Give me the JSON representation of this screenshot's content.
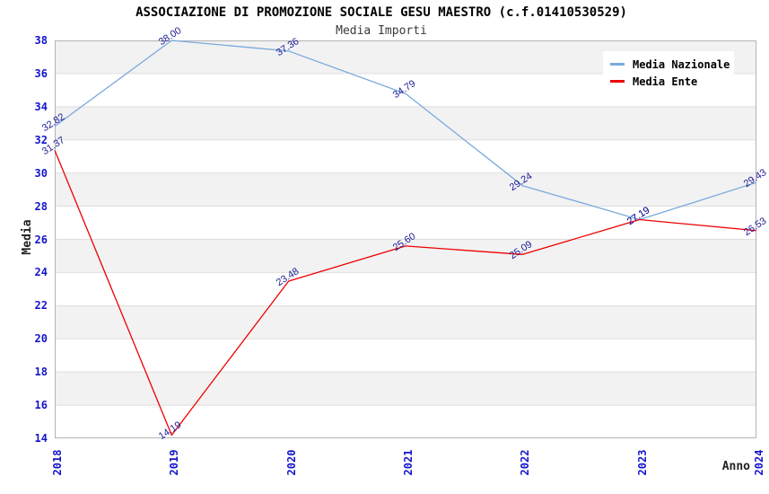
{
  "header": {
    "title": "ASSOCIAZIONE DI PROMOZIONE SOCIALE GESU MAESTRO (c.f.01410530529)",
    "subtitle": "Media Importi"
  },
  "chart_data": {
    "type": "line",
    "title": "ASSOCIAZIONE DI PROMOZIONE SOCIALE GESU MAESTRO (c.f.01410530529)",
    "subtitle": "Media Importi",
    "xlabel": "Anno",
    "ylabel": "Media",
    "categories": [
      "2018",
      "2019",
      "2020",
      "2021",
      "2022",
      "2023",
      "2024"
    ],
    "yticks": [
      38,
      36,
      34,
      32,
      30,
      28,
      26,
      24,
      22,
      20,
      18,
      16,
      14
    ],
    "ylim": [
      14,
      38
    ],
    "grid": "alternating-horizontal-bands",
    "legend_position": "top-right",
    "series": [
      {
        "name": "Media Nazionale",
        "color": "#79aadd",
        "values": [
          32.82,
          38.0,
          37.36,
          34.79,
          29.24,
          27.19,
          29.43
        ]
      },
      {
        "name": "Media Ente",
        "color": "#ee0000",
        "values": [
          31.37,
          14.19,
          23.48,
          25.6,
          25.09,
          27.19,
          26.53
        ]
      }
    ]
  },
  "colors": {
    "band_gray": "#f2f2f2",
    "band_white": "#ffffff",
    "gridline": "#dedede",
    "plot_border": "#b4b4b4",
    "tick_text": "#1414cc",
    "data_label_text": "#1c1c96",
    "series_blue": "#79aadd",
    "series_red": "#ee0000"
  }
}
